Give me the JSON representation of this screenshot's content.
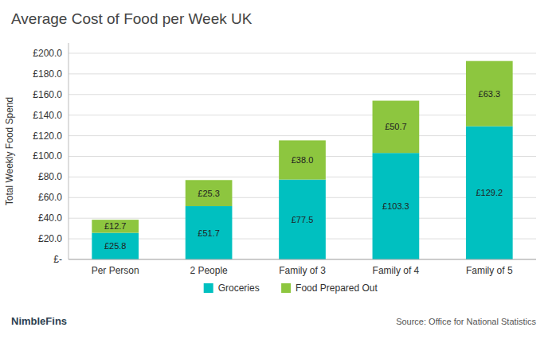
{
  "chart_data": {
    "type": "bar",
    "stacked": true,
    "title": "Average Cost of Food per Week UK",
    "ylabel": "Total Weekly Food Spend",
    "categories": [
      "Per Person",
      "2 People",
      "Family of 3",
      "Family of 4",
      "Family of 5"
    ],
    "series": [
      {
        "name": "Groceries",
        "color": "#00C0C0",
        "values": [
          25.8,
          51.7,
          77.5,
          103.3,
          129.2
        ],
        "value_labels": [
          "£25.8",
          "£51.7",
          "£77.5",
          "£103.3",
          "£129.2"
        ]
      },
      {
        "name": "Food Prepared Out",
        "color": "#8DC63F",
        "values": [
          12.7,
          25.3,
          38.0,
          50.7,
          63.3
        ],
        "value_labels": [
          "£12.7",
          "£25.3",
          "£38.0",
          "£50.7",
          "£63.3"
        ]
      }
    ],
    "ylim": [
      0,
      210
    ],
    "yticks": [
      {
        "value": 0,
        "label": "£-"
      },
      {
        "value": 20,
        "label": "£20.0"
      },
      {
        "value": 40,
        "label": "£40.0"
      },
      {
        "value": 60,
        "label": "£60.0"
      },
      {
        "value": 80,
        "label": "£80.0"
      },
      {
        "value": 100,
        "label": "£100.0"
      },
      {
        "value": 120,
        "label": "£120.0"
      },
      {
        "value": 140,
        "label": "£140.0"
      },
      {
        "value": 160,
        "label": "£160.0"
      },
      {
        "value": 180,
        "label": "£180.0"
      },
      {
        "value": 200,
        "label": "£200.0"
      }
    ],
    "grid": true,
    "legend": "bottom",
    "data_labels": true,
    "annotations": [
      "Source: Office for National Statistics",
      "NimbleFins"
    ]
  }
}
